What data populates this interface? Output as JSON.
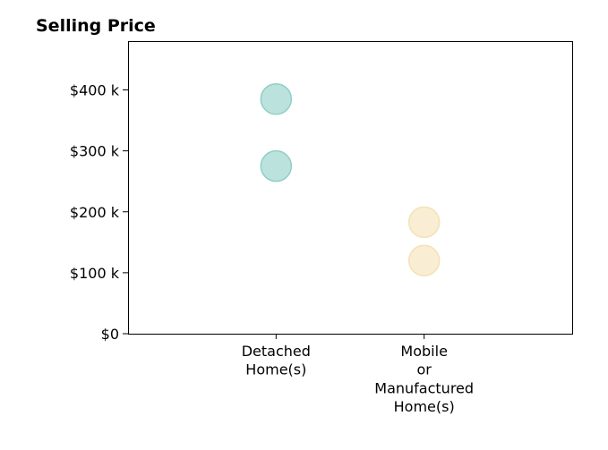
{
  "chart_data": {
    "type": "scatter",
    "title": "Selling Price",
    "xlabel": "",
    "ylabel": "",
    "categories": [
      [
        "Detached",
        "Home(s)"
      ],
      [
        "Mobile",
        "or",
        "Manufactured",
        "Home(s)"
      ]
    ],
    "x_range": [
      -1,
      2
    ],
    "ylim": [
      0,
      480000
    ],
    "y_ticks": [
      0,
      100000,
      200000,
      300000,
      400000
    ],
    "y_tick_labels": [
      "$0",
      "$100 k",
      "$200 k",
      "$300 k",
      "$400 k"
    ],
    "grid": false,
    "legend": "none",
    "series": [
      {
        "category_index": 0,
        "color": "#8fcfc7",
        "values": [
          385000,
          275000
        ]
      },
      {
        "category_index": 1,
        "color": "#f5e1b5",
        "values": [
          183000,
          120000
        ]
      }
    ]
  }
}
